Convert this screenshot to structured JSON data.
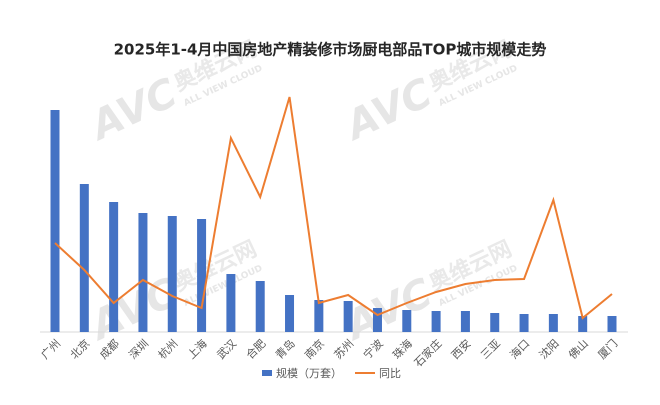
{
  "chart_data": {
    "type": "bar-line",
    "title": "2025年1-4月中国房地产精装修市场厨电部品TOP城市规模走势",
    "watermark": [
      "AVC",
      "奥维云网",
      "ALL VIEW CLOUD"
    ],
    "categories": [
      "广州",
      "北京",
      "成都",
      "深圳",
      "杭州",
      "上海",
      "武汉",
      "合肥",
      "青岛",
      "南京",
      "苏州",
      "宁波",
      "珠海",
      "石家庄",
      "西安",
      "三亚",
      "海口",
      "沈阳",
      "佛山",
      "厦门"
    ],
    "series": [
      {
        "name": "规模（万套）",
        "type": "bar",
        "color": "#4472c4",
        "values": [
          222,
          148,
          130,
          119,
          116,
          113,
          58,
          51,
          37,
          32,
          31,
          24,
          22,
          21,
          21,
          19,
          18,
          18,
          16,
          16
        ]
      },
      {
        "name": "同比",
        "type": "line",
        "axis": "y2",
        "color": "#ed7d31",
        "values": [
          89,
          62,
          29,
          52,
          36,
          24,
          194,
          135,
          235,
          29,
          37,
          17,
          29,
          40,
          48,
          52,
          53,
          132,
          14,
          38
        ]
      }
    ],
    "ylim": [
      0,
      237
    ],
    "y2lim": [
      0,
      237
    ],
    "legend": "bottom"
  }
}
